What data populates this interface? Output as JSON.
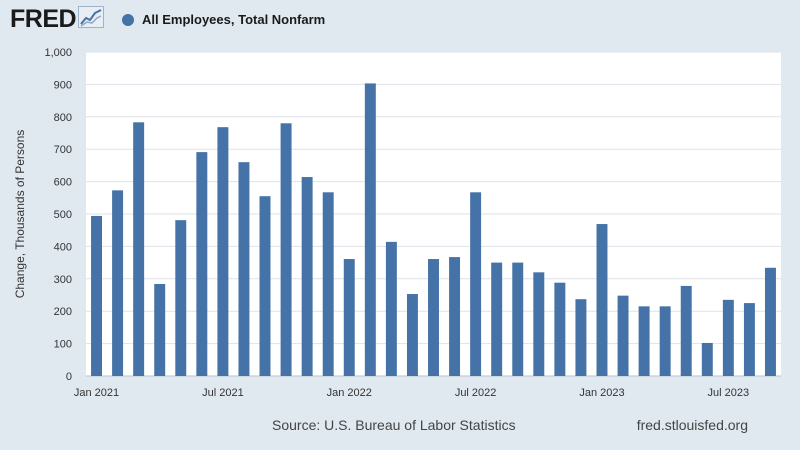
{
  "header": {
    "logo_text": "FRED",
    "legend_label": "All Employees, Total Nonfarm"
  },
  "colors": {
    "series": "#4572a7",
    "background": "#e1e9f0",
    "plot": "#ffffff",
    "grid": "#dde3ea"
  },
  "icons": {
    "logo": "trend-graph-icon",
    "legend": "series-dot-icon"
  },
  "footer": {
    "source": "Source: U.S. Bureau of Labor Statistics",
    "site": "fred.stlouisfed.org"
  },
  "chart_data": {
    "type": "bar",
    "ylabel": "Change, Thousands of Persons",
    "ylim": [
      0,
      1000
    ],
    "yticks": [
      0,
      100,
      200,
      300,
      400,
      500,
      600,
      700,
      800,
      900,
      1000
    ],
    "ytick_labels": [
      "0",
      "100",
      "200",
      "300",
      "400",
      "500",
      "600",
      "700",
      "800",
      "900",
      "1,000"
    ],
    "xtick_labels": [
      {
        "label": "Jan 2021",
        "index": 0
      },
      {
        "label": "Jul 2021",
        "index": 6
      },
      {
        "label": "Jan 2022",
        "index": 12
      },
      {
        "label": "Jul 2022",
        "index": 18
      },
      {
        "label": "Jan 2023",
        "index": 24
      },
      {
        "label": "Jul 2023",
        "index": 30
      }
    ],
    "grid": true,
    "series": [
      {
        "name": "All Employees, Total Nonfarm",
        "x": [
          "2021-01",
          "2021-02",
          "2021-03",
          "2021-04",
          "2021-05",
          "2021-06",
          "2021-07",
          "2021-08",
          "2021-09",
          "2021-10",
          "2021-11",
          "2021-12",
          "2022-01",
          "2022-02",
          "2022-03",
          "2022-04",
          "2022-05",
          "2022-06",
          "2022-07",
          "2022-08",
          "2022-09",
          "2022-10",
          "2022-11",
          "2022-12",
          "2023-01",
          "2023-02",
          "2023-03",
          "2023-04",
          "2023-05",
          "2023-06",
          "2023-07",
          "2023-08",
          "2023-09"
        ],
        "values": [
          494,
          573,
          783,
          284,
          481,
          691,
          768,
          660,
          555,
          780,
          614,
          567,
          361,
          903,
          414,
          253,
          361,
          367,
          567,
          350,
          350,
          320,
          288,
          237,
          469,
          248,
          215,
          215,
          278,
          102,
          235,
          225,
          334
        ]
      }
    ]
  }
}
